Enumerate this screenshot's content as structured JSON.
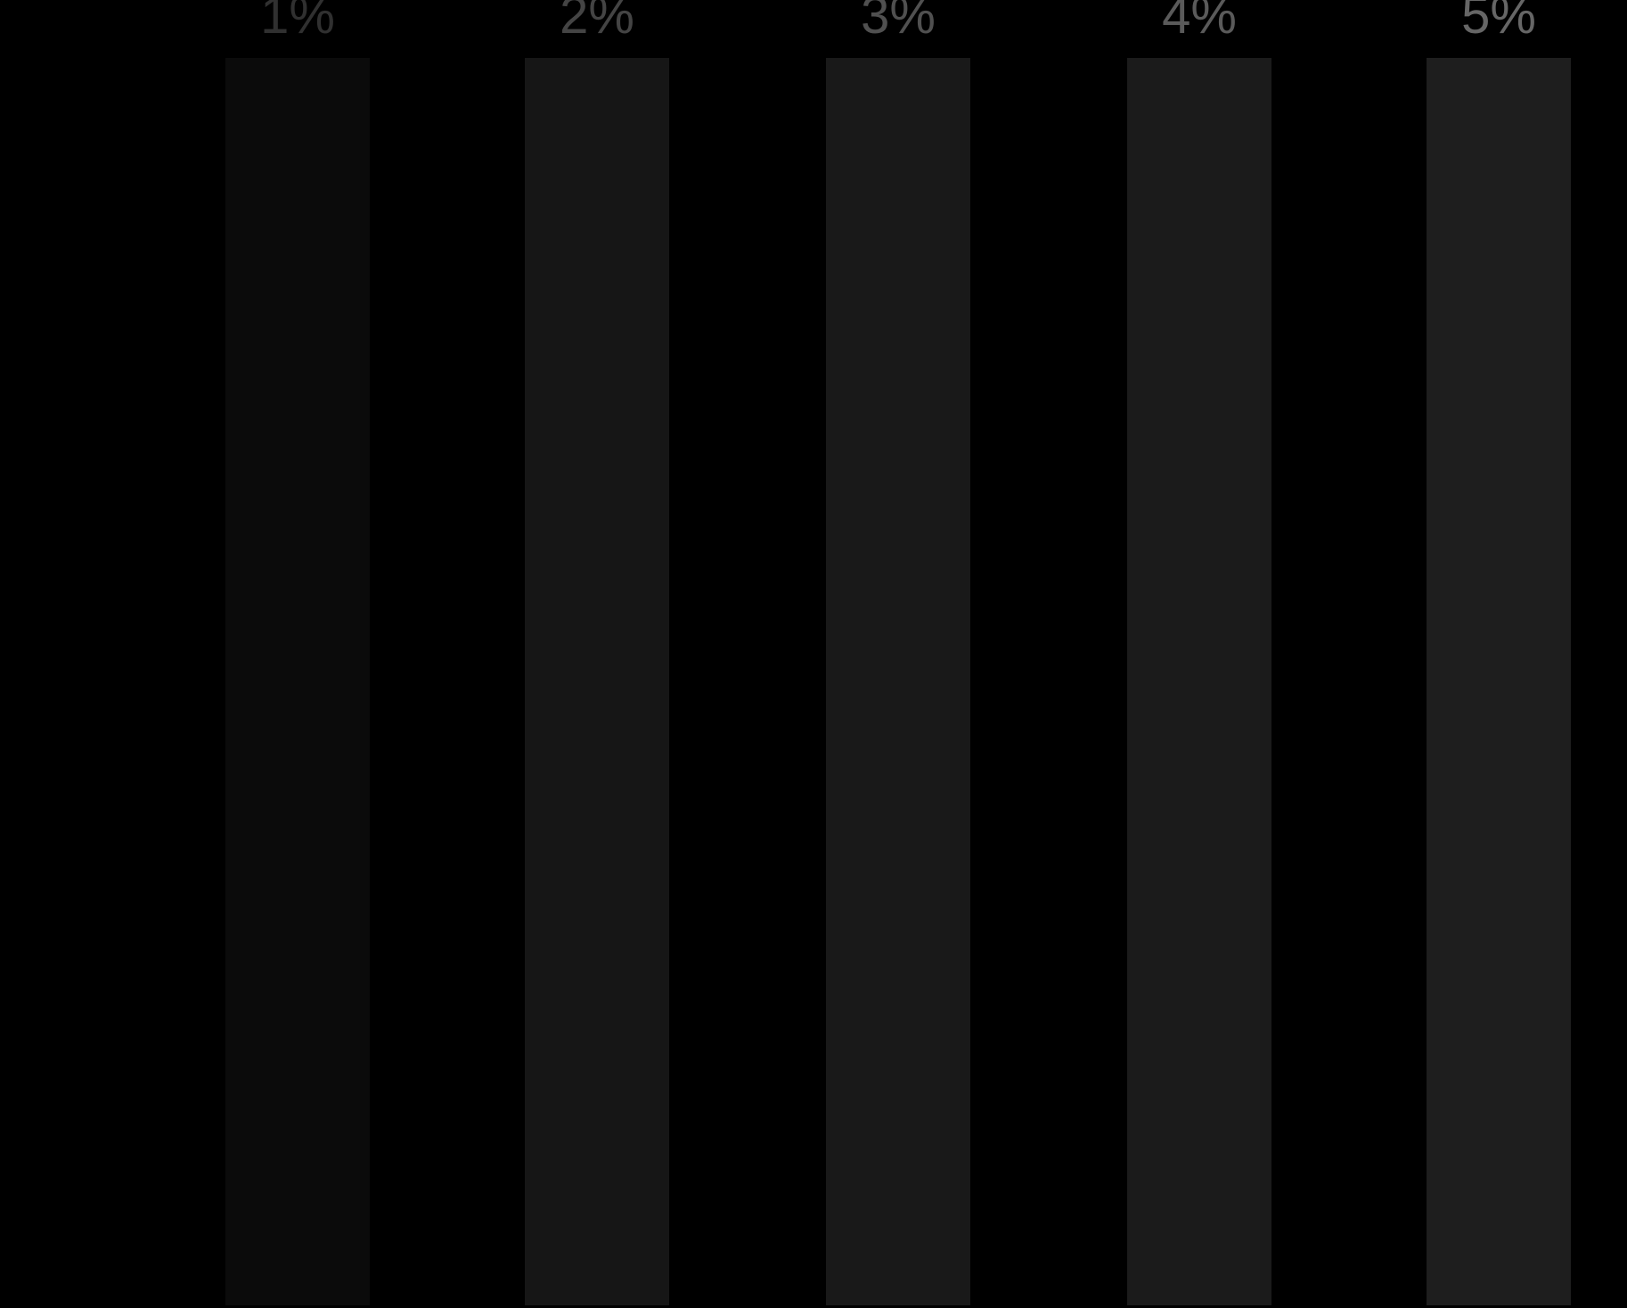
{
  "swatches": [
    {
      "label": "1%",
      "bar_color": "#0b0b0b",
      "label_color": "#303030"
    },
    {
      "label": "2%",
      "bar_color": "#161616",
      "label_color": "#444444"
    },
    {
      "label": "3%",
      "bar_color": "#191919",
      "label_color": "#505050"
    },
    {
      "label": "4%",
      "bar_color": "#1b1b1b",
      "label_color": "#5a5a5a"
    },
    {
      "label": "5%",
      "bar_color": "#1e1e1e",
      "label_color": "#666666"
    }
  ]
}
